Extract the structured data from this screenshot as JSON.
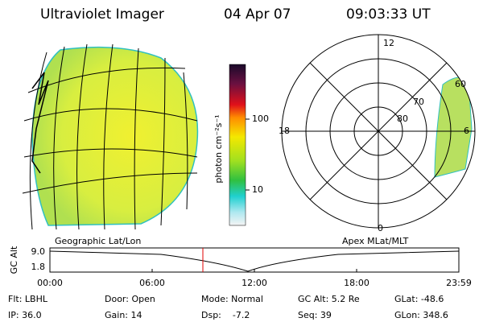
{
  "header": {
    "title": "Ultraviolet Imager",
    "date": "04 Apr 07",
    "time": "09:03:33 UT"
  },
  "colorbar": {
    "label": "photon cm⁻²s⁻¹",
    "ticks": [
      "100",
      "10"
    ]
  },
  "polar": {
    "mlt_labels": [
      "12",
      "18",
      "6",
      "0"
    ],
    "mlat_labels": [
      "60",
      "70",
      "80"
    ]
  },
  "altitude_plot": {
    "left_title": "Geographic Lat/Lon",
    "right_title": "Apex MLat/MLT",
    "y_label": "GC Alt",
    "y_ticks": [
      "9.0",
      "1.8"
    ],
    "x_ticks": [
      "00:00",
      "06:00",
      "12:00",
      "18:00",
      "23:59"
    ]
  },
  "footer": {
    "rows": [
      [
        "Flt: LBHL",
        "Door: Open",
        "Mode: Normal",
        "GC Alt: 5.2 Re",
        "GLat: -48.6"
      ],
      [
        "IP: 36.0",
        "Gain: 14",
        "Dsp:    -7.2",
        "Seq: 39",
        "GLon: 348.6"
      ]
    ]
  }
}
